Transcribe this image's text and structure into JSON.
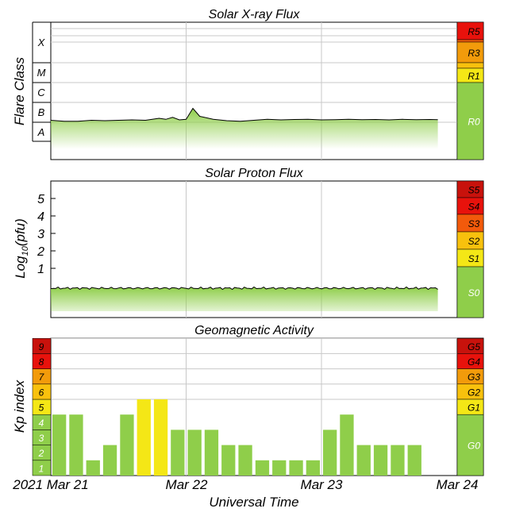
{
  "colors": {
    "green": "#8fce4a",
    "yellow": "#f4e716",
    "orange": "#f29b0b",
    "orange_light": "#f8c10d",
    "red_orange": "#f25a0b",
    "red": "#e8120c",
    "dark_red": "#c8120c"
  },
  "x_axis": {
    "label": "Universal Time",
    "ticks": [
      "2021 Mar 21",
      "Mar 22",
      "Mar 23",
      "Mar 24"
    ]
  },
  "chart_data": [
    {
      "type": "area",
      "title": "Solar X-ray Flux",
      "ylabel": "Flare Class",
      "class_labels": [
        "X",
        "M",
        "C",
        "B",
        "A"
      ],
      "scale_labels": [
        "R5",
        "R3",
        "R1",
        "R0"
      ],
      "x_days": [
        0.0,
        0.1,
        0.2,
        0.3,
        0.4,
        0.5,
        0.6,
        0.7,
        0.8,
        0.85,
        0.9,
        0.95,
        1.0,
        1.05,
        1.1,
        1.2,
        1.3,
        1.4,
        1.5,
        1.6,
        1.7,
        1.8,
        1.9,
        2.0,
        2.1,
        2.2,
        2.3,
        2.4,
        2.5,
        2.6,
        2.7,
        2.8,
        2.86
      ],
      "log_flux": [
        -7.9,
        -7.95,
        -7.95,
        -7.9,
        -7.92,
        -7.9,
        -7.88,
        -7.9,
        -7.8,
        -7.85,
        -7.75,
        -7.88,
        -7.85,
        -7.3,
        -7.7,
        -7.85,
        -7.92,
        -7.95,
        -7.9,
        -7.85,
        -7.88,
        -7.86,
        -7.85,
        -7.88,
        -7.87,
        -7.85,
        -7.87,
        -7.86,
        -7.88,
        -7.85,
        -7.87,
        -7.86,
        -7.87
      ]
    },
    {
      "type": "area",
      "title": "Solar Proton Flux",
      "ylabel": "Log10(pfu)",
      "yticks": [
        "1",
        "2",
        "3",
        "4",
        "5"
      ],
      "scale_labels": [
        "S5",
        "S4",
        "S3",
        "S2",
        "S1",
        "S0"
      ],
      "x_days": [
        0.0,
        0.5,
        1.0,
        1.5,
        2.0,
        2.5,
        2.86
      ],
      "log_flux": [
        -0.55,
        -0.55,
        -0.56,
        -0.55,
        -0.56,
        -0.55,
        -0.55
      ]
    },
    {
      "type": "bar",
      "title": "Geomagnetic Activity",
      "ylabel": "Kp index",
      "ylim": [
        0,
        9
      ],
      "level_labels": [
        "1",
        "2",
        "3",
        "4",
        "5",
        "6",
        "7",
        "8",
        "9"
      ],
      "scale_labels": [
        "G5",
        "G4",
        "G3",
        "G2",
        "G1",
        "G0"
      ],
      "bar_hours": 3,
      "values": [
        4,
        4,
        1,
        2,
        4,
        5,
        5,
        3,
        3,
        3,
        2,
        2,
        1,
        1,
        1,
        1,
        3,
        4,
        2,
        2,
        2,
        2,
        0,
        0
      ]
    }
  ]
}
